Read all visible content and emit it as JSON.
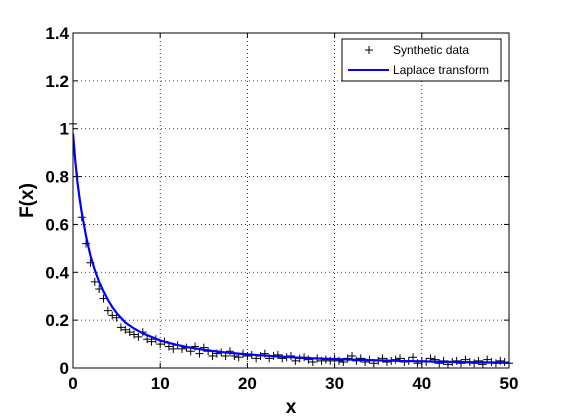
{
  "chart_data": {
    "type": "line",
    "title": "",
    "xlabel": "x",
    "ylabel": "F(x)",
    "xlim": [
      0,
      50
    ],
    "ylim": [
      0,
      1.4
    ],
    "xticks": [
      0,
      10,
      20,
      30,
      40,
      50
    ],
    "xtick_labels": [
      "0",
      "10",
      "20",
      "30",
      "40",
      "50"
    ],
    "yticks": [
      0,
      0.2,
      0.4,
      0.6,
      0.8,
      1.0,
      1.2,
      1.4
    ],
    "ytick_labels": [
      "0",
      "0.2",
      "0.4",
      "0.6",
      "0.8",
      "1",
      "1.2",
      "1.4"
    ],
    "grid": true,
    "legend_position": "top-right",
    "series": [
      {
        "name": "Synthetic data",
        "style": "markers",
        "marker": "+",
        "color": "#000000",
        "x": [
          0.0,
          0.5,
          1.0,
          1.5,
          2.0,
          2.5,
          3.0,
          3.5,
          4.0,
          4.5,
          5.0,
          5.5,
          6.0,
          6.5,
          7.0,
          7.5,
          8.0,
          8.5,
          9.0,
          9.5,
          10.0,
          10.5,
          11.0,
          11.5,
          12.0,
          12.5,
          13.0,
          13.5,
          14.0,
          14.5,
          15.0,
          15.5,
          16.0,
          16.5,
          17.0,
          17.5,
          18.0,
          18.5,
          19.0,
          19.5,
          20.0,
          20.5,
          21.0,
          21.5,
          22.0,
          22.5,
          23.0,
          23.5,
          24.0,
          24.5,
          25.0,
          25.5,
          26.0,
          26.5,
          27.0,
          27.5,
          28.0,
          28.5,
          29.0,
          29.5,
          30.0,
          30.5,
          31.0,
          31.5,
          32.0,
          32.5,
          33.0,
          33.5,
          34.0,
          34.5,
          35.0,
          35.5,
          36.0,
          36.5,
          37.0,
          37.5,
          38.0,
          38.5,
          39.0,
          39.5,
          40.0,
          40.5,
          41.0,
          41.5,
          42.0,
          42.5,
          43.0,
          43.5,
          44.0,
          44.5,
          45.0,
          45.5,
          46.0,
          46.5,
          47.0,
          47.5,
          48.0,
          48.5,
          49.0,
          49.5,
          50.0
        ],
        "y": [
          1.02,
          0.8,
          0.63,
          0.52,
          0.44,
          0.36,
          0.33,
          0.29,
          0.24,
          0.22,
          0.21,
          0.17,
          0.16,
          0.15,
          0.14,
          0.13,
          0.15,
          0.12,
          0.11,
          0.12,
          0.1,
          0.11,
          0.09,
          0.08,
          0.095,
          0.08,
          0.085,
          0.07,
          0.09,
          0.06,
          0.085,
          0.07,
          0.05,
          0.06,
          0.065,
          0.05,
          0.07,
          0.05,
          0.045,
          0.06,
          0.05,
          0.055,
          0.04,
          0.05,
          0.06,
          0.04,
          0.05,
          0.055,
          0.04,
          0.045,
          0.05,
          0.03,
          0.04,
          0.045,
          0.035,
          0.025,
          0.04,
          0.03,
          0.035,
          0.03,
          0.04,
          0.03,
          0.025,
          0.04,
          0.05,
          0.03,
          0.04,
          0.025,
          0.035,
          0.02,
          0.03,
          0.04,
          0.025,
          0.03,
          0.035,
          0.04,
          0.025,
          0.03,
          0.045,
          0.02,
          0.03,
          0.025,
          0.04,
          0.035,
          0.02,
          0.03,
          0.015,
          0.025,
          0.03,
          0.02,
          0.035,
          0.025,
          0.02,
          0.03,
          0.015,
          0.035,
          0.025,
          0.02,
          0.03,
          0.025,
          0.02
        ],
        "note": ""
      },
      {
        "name": "Laplace transform",
        "style": "line",
        "color": "#0000ff",
        "x": [
          0.0,
          0.25,
          0.5,
          0.75,
          1.0,
          1.5,
          2.0,
          2.5,
          3.0,
          3.5,
          4.0,
          4.5,
          5.0,
          6.0,
          7.0,
          8.0,
          9.0,
          10.0,
          11.0,
          12.0,
          13.0,
          14.0,
          15.0,
          16.0,
          17.0,
          18.0,
          19.0,
          20.0,
          22.0,
          24.0,
          26.0,
          28.0,
          30.0,
          32.0,
          34.0,
          36.0,
          38.0,
          40.0,
          42.0,
          44.0,
          46.0,
          48.0,
          50.0
        ],
        "y": [
          0.98,
          0.87,
          0.78,
          0.71,
          0.65,
          0.55,
          0.47,
          0.41,
          0.36,
          0.32,
          0.285,
          0.255,
          0.23,
          0.19,
          0.165,
          0.145,
          0.13,
          0.115,
          0.105,
          0.096,
          0.088,
          0.082,
          0.076,
          0.071,
          0.067,
          0.063,
          0.06,
          0.057,
          0.052,
          0.047,
          0.043,
          0.04,
          0.037,
          0.035,
          0.033,
          0.031,
          0.029,
          0.028,
          0.026,
          0.025,
          0.024,
          0.023,
          0.022
        ]
      }
    ]
  }
}
